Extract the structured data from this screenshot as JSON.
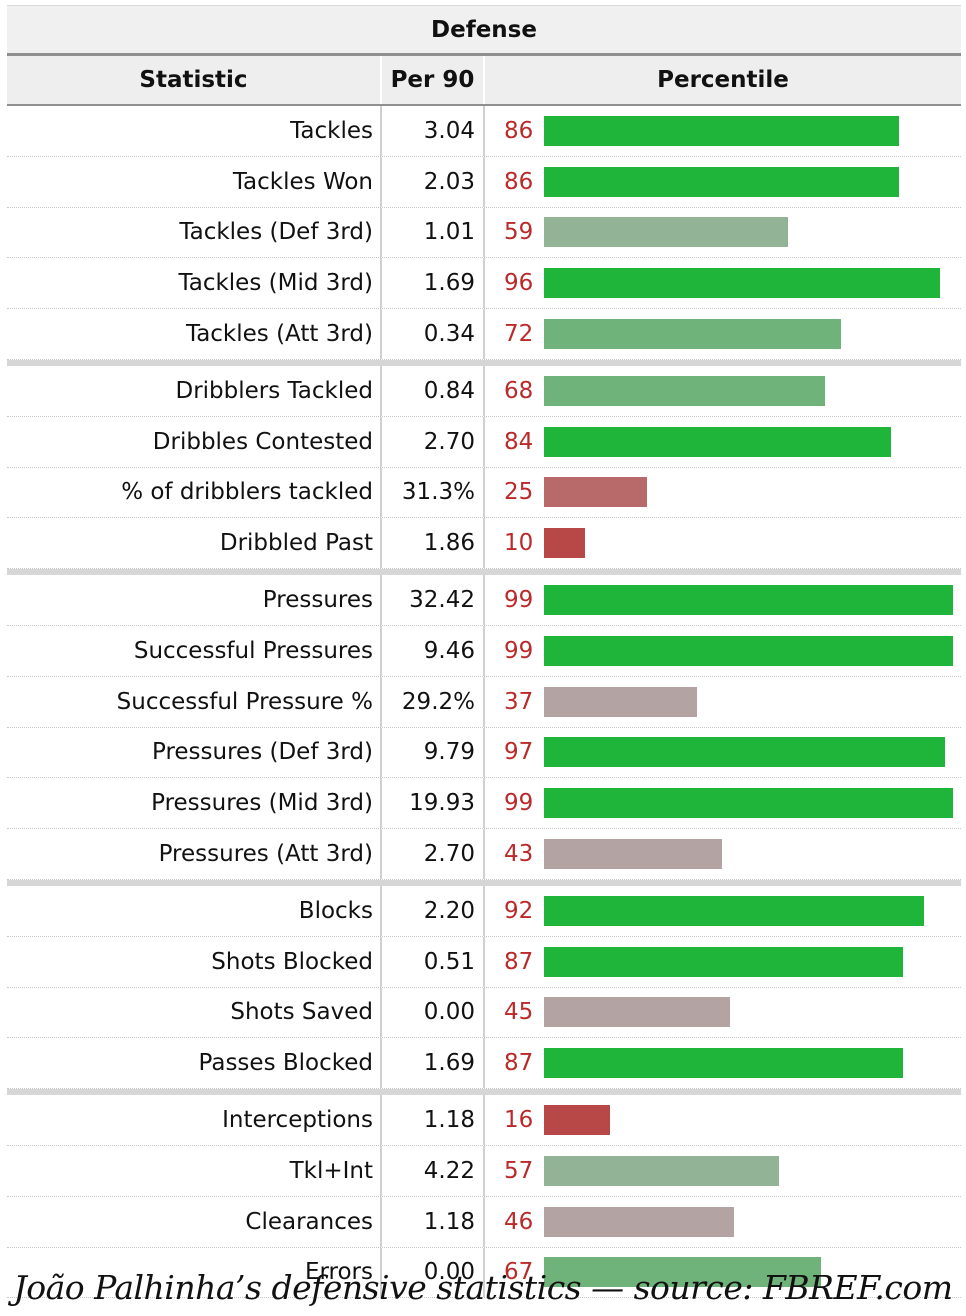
{
  "table": {
    "section_title": "Defense",
    "headers": {
      "statistic": "Statistic",
      "per90": "Per 90",
      "percentile": "Percentile"
    }
  },
  "caption": "João Palhinha’s defensive statistics — source: FBREF.com",
  "colors": {
    "high": "#1fb53a",
    "mid_green": "#6fb27a",
    "neutral": "#b3a3a3",
    "low": "#b84848",
    "percentile_text": "#bb2a2a"
  },
  "chart_data": {
    "type": "bar",
    "orientation": "horizontal",
    "title": "Defense",
    "xlim": [
      0,
      100
    ],
    "groups": [
      [
        {
          "stat": "Tackles",
          "per90": "3.04",
          "percentile": 86
        },
        {
          "stat": "Tackles Won",
          "per90": "2.03",
          "percentile": 86
        },
        {
          "stat": "Tackles (Def 3rd)",
          "per90": "1.01",
          "percentile": 59
        },
        {
          "stat": "Tackles (Mid 3rd)",
          "per90": "1.69",
          "percentile": 96
        },
        {
          "stat": "Tackles (Att 3rd)",
          "per90": "0.34",
          "percentile": 72
        }
      ],
      [
        {
          "stat": "Dribblers Tackled",
          "per90": "0.84",
          "percentile": 68
        },
        {
          "stat": "Dribbles Contested",
          "per90": "2.70",
          "percentile": 84
        },
        {
          "stat": "% of dribblers tackled",
          "per90": "31.3%",
          "percentile": 25
        },
        {
          "stat": "Dribbled Past",
          "per90": "1.86",
          "percentile": 10
        }
      ],
      [
        {
          "stat": "Pressures",
          "per90": "32.42",
          "percentile": 99
        },
        {
          "stat": "Successful Pressures",
          "per90": "9.46",
          "percentile": 99
        },
        {
          "stat": "Successful Pressure %",
          "per90": "29.2%",
          "percentile": 37
        },
        {
          "stat": "Pressures (Def 3rd)",
          "per90": "9.79",
          "percentile": 97
        },
        {
          "stat": "Pressures (Mid 3rd)",
          "per90": "19.93",
          "percentile": 99
        },
        {
          "stat": "Pressures (Att 3rd)",
          "per90": "2.70",
          "percentile": 43
        }
      ],
      [
        {
          "stat": "Blocks",
          "per90": "2.20",
          "percentile": 92
        },
        {
          "stat": "Shots Blocked",
          "per90": "0.51",
          "percentile": 87
        },
        {
          "stat": "Shots Saved",
          "per90": "0.00",
          "percentile": 45
        },
        {
          "stat": "Passes Blocked",
          "per90": "1.69",
          "percentile": 87
        }
      ],
      [
        {
          "stat": "Interceptions",
          "per90": "1.18",
          "percentile": 16
        },
        {
          "stat": "Tkl+Int",
          "per90": "4.22",
          "percentile": 57
        },
        {
          "stat": "Clearances",
          "per90": "1.18",
          "percentile": 46
        },
        {
          "stat": "Errors",
          "per90": "0.00",
          "percentile": 67
        }
      ]
    ]
  }
}
